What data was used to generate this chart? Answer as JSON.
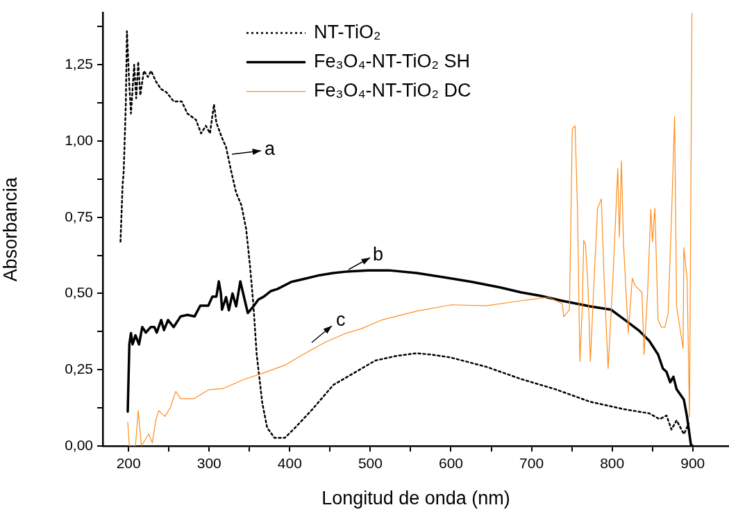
{
  "chart_data": {
    "type": "line",
    "xlabel": "Longitud de onda (nm)",
    "ylabel": "Absorbancia",
    "xlim": [
      168,
      945
    ],
    "ylim": [
      0,
      1.42
    ],
    "xticks": [
      200,
      {
        "value": 250,
        "label": null
      },
      300,
      {
        "value": 350,
        "label": null
      },
      400,
      {
        "value": 450,
        "label": null
      },
      500,
      {
        "value": 550,
        "label": null
      },
      600,
      {
        "value": 650,
        "label": null
      },
      700,
      {
        "value": 750,
        "label": null
      },
      800,
      {
        "value": 850,
        "label": null
      },
      900
    ],
    "yticks": [
      {
        "value": 0,
        "label": "0,00"
      },
      {
        "value": 0.125,
        "label": null
      },
      {
        "value": 0.25,
        "label": "0,25"
      },
      {
        "value": 0.375,
        "label": null
      },
      {
        "value": 0.5,
        "label": "0,50"
      },
      {
        "value": 0.625,
        "label": null
      },
      {
        "value": 0.75,
        "label": "0,75"
      },
      {
        "value": 0.875,
        "label": null
      },
      {
        "value": 1,
        "label": "1,00"
      },
      {
        "value": 1.125,
        "label": null
      },
      {
        "value": 1.25,
        "label": "1,25"
      },
      {
        "value": 1.375,
        "label": null
      }
    ],
    "grid": false,
    "legend": "top",
    "marker": "none",
    "annotations": [
      "a",
      "b",
      "c"
    ],
    "series": [
      {
        "name": "NT-TiO₂",
        "color": "#000000",
        "line_style": "dotted",
        "x": [
          190,
          192.6,
          194,
          196.6,
          198,
          201,
          203,
          207,
          209.5,
          212,
          214.6,
          219,
          224,
          228,
          234,
          240.5,
          247,
          256,
          266,
          273,
          283.5,
          290,
          296,
          301,
          306,
          309,
          316,
          321,
          326.6,
          333.5,
          340,
          346,
          350.7,
          355,
          359,
          366,
          372,
          381,
          394,
          406.7,
          428,
          454,
          480,
          506,
          531.6,
          557,
          575,
          600,
          643.6,
          686.6,
          729.7,
          772.8,
          816,
          846,
          859,
          867.5,
          873.6,
          880,
          889,
          895
        ],
        "values": [
          0.67,
          0.855,
          0.9,
          1.12,
          1.36,
          1.18,
          1.09,
          1.25,
          1.14,
          1.26,
          1.15,
          1.23,
          1.21,
          1.23,
          1.195,
          1.17,
          1.16,
          1.13,
          1.13,
          1.09,
          1.07,
          1.025,
          1.05,
          1.025,
          1.12,
          1.06,
          1.01,
          0.98,
          0.91,
          0.83,
          0.79,
          0.71,
          0.59,
          0.46,
          0.3,
          0.14,
          0.06,
          0.027,
          0.027,
          0.06,
          0.12,
          0.2,
          0.24,
          0.28,
          0.295,
          0.304,
          0.3,
          0.29,
          0.26,
          0.22,
          0.186,
          0.145,
          0.12,
          0.107,
          0.088,
          0.1,
          0.054,
          0.084,
          0.039,
          0.073
        ]
      },
      {
        "name": "Fe₃O₄-NT-TiO₂ SH",
        "color": "#000000",
        "line_style": "solid",
        "x": [
          199,
          201,
          203,
          205,
          208.6,
          213,
          217,
          221.5,
          227.5,
          232,
          235,
          240.5,
          244,
          249,
          256,
          264.6,
          273,
          282,
          289,
          299,
          304,
          309,
          312,
          314.6,
          316,
          321,
          324.5,
          329,
          333.5,
          338.7,
          344,
          348,
          355,
          361,
          368,
          376.6,
          385,
          402,
          419.6,
          436.9,
          454,
          471,
          497,
          523,
          557.5,
          592,
          626,
          661,
          686.6,
          712,
          738,
          772.8,
          798.6,
          816,
          833,
          846,
          857,
          863,
          867.5,
          872,
          876,
          880,
          889,
          893,
          897.7,
          900
        ],
        "values": [
          0.113,
          0.333,
          0.37,
          0.333,
          0.363,
          0.333,
          0.39,
          0.372,
          0.39,
          0.39,
          0.372,
          0.413,
          0.38,
          0.413,
          0.39,
          0.425,
          0.43,
          0.425,
          0.46,
          0.46,
          0.49,
          0.49,
          0.54,
          0.5,
          0.447,
          0.488,
          0.445,
          0.5,
          0.458,
          0.54,
          0.48,
          0.436,
          0.458,
          0.48,
          0.49,
          0.508,
          0.515,
          0.538,
          0.549,
          0.56,
          0.567,
          0.572,
          0.576,
          0.576,
          0.567,
          0.553,
          0.538,
          0.52,
          0.504,
          0.492,
          0.476,
          0.458,
          0.447,
          0.413,
          0.379,
          0.345,
          0.3,
          0.254,
          0.243,
          0.209,
          0.227,
          0.186,
          0.152,
          0.095,
          0.005,
          0
        ]
      },
      {
        "name": "Fe₃O₄-NT-TiO₂ DC",
        "color": "#ff8c1a",
        "line_style": "solid",
        "x": [
          199,
          201,
          208.6,
          212,
          216,
          225,
          229.5,
          234,
          237.6,
          245,
          252,
          258.6,
          264.6,
          281,
          299,
          317,
          343,
          368,
          394,
          415,
          444.6,
          470,
          488.5,
          514,
          557.5,
          600.5,
          643.6,
          686.6,
          721,
          738,
          740,
          747,
          748.7,
          750.5,
          754,
          757,
          760,
          763,
          764.7,
          767,
          770,
          773,
          777.7,
          782,
          786.6,
          790,
          795,
          801,
          807,
          809,
          811.5,
          814,
          820,
          825,
          828.5,
          837,
          839.6,
          844,
          848,
          850,
          853,
          857,
          861,
          865.5,
          869.5,
          874,
          877.5,
          880,
          888,
          889,
          893,
          896,
          899
        ],
        "values": [
          0.078,
          0,
          0,
          0.116,
          0,
          0.04,
          0.01,
          0.088,
          0.116,
          0.097,
          0.126,
          0.179,
          0.155,
          0.155,
          0.184,
          0.188,
          0.218,
          0.24,
          0.265,
          0.298,
          0.341,
          0.37,
          0.384,
          0.413,
          0.442,
          0.463,
          0.46,
          0.476,
          0.488,
          0.467,
          0.424,
          0.447,
          0.71,
          1.04,
          1.05,
          0.78,
          0.277,
          0.458,
          0.674,
          0.66,
          0.526,
          0.277,
          0.55,
          0.78,
          0.81,
          0.55,
          0.254,
          0.55,
          0.91,
          0.685,
          0.935,
          0.67,
          0.37,
          0.55,
          0.526,
          0.504,
          0.3,
          0.504,
          0.776,
          0.67,
          0.78,
          0.413,
          0.39,
          0.39,
          0.436,
          0.776,
          1.08,
          0.458,
          0.32,
          0.65,
          0.55,
          0.095,
          1.42
        ]
      }
    ]
  }
}
